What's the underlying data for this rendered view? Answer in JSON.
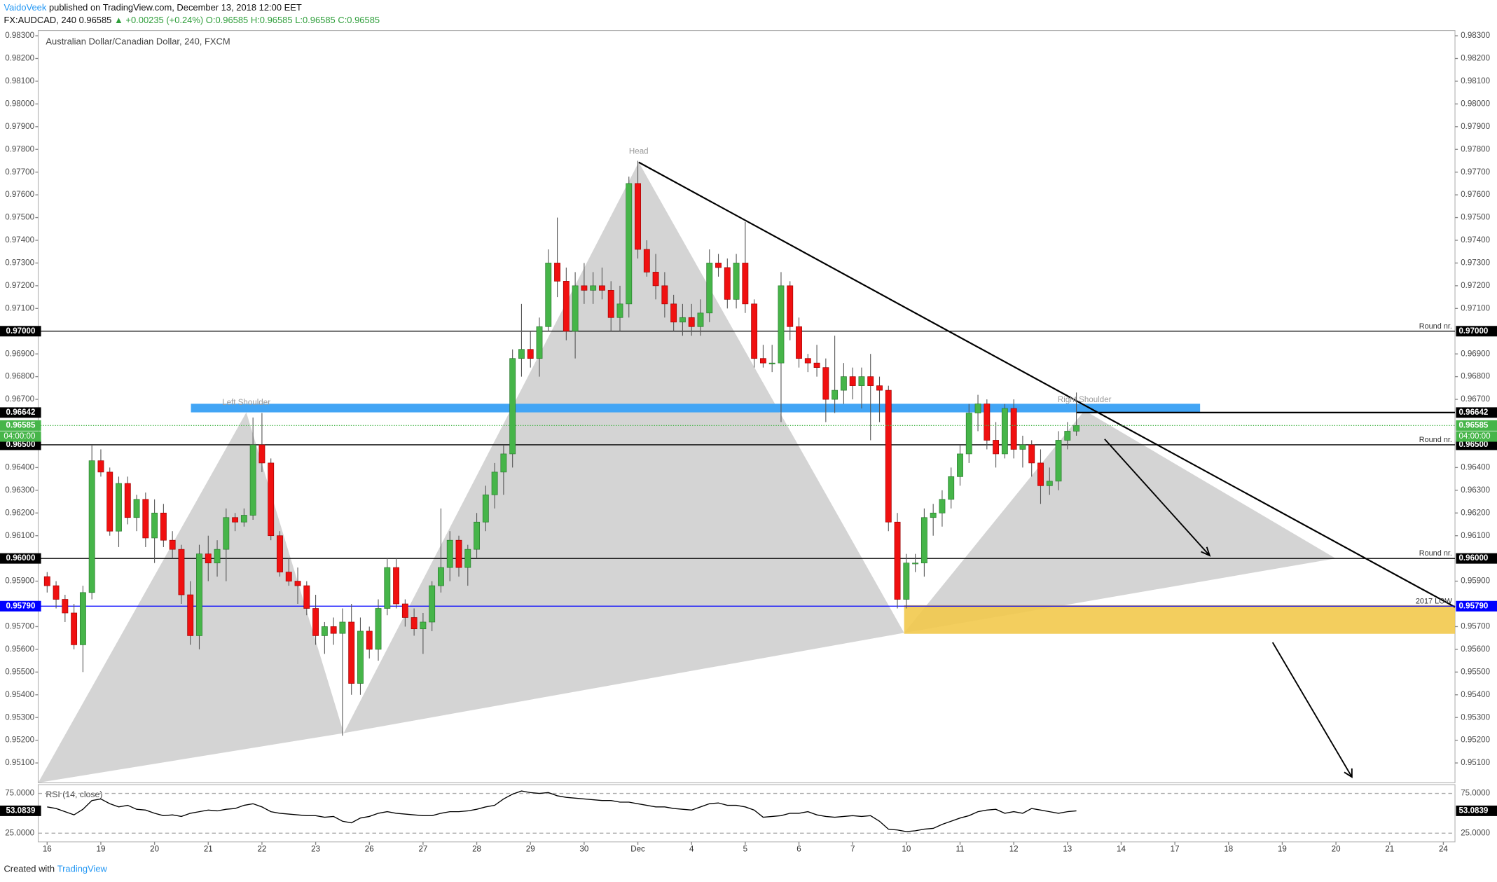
{
  "header": {
    "author": "VaidoVeek",
    "published": "published on TradingView.com, December 13, 2018 12:00 EET",
    "symbol": "FX:AUDCAD, 240",
    "price": "0.96585",
    "change": "▲ +0.00235 (+0.24%)",
    "ohlc": [
      "O:0.96585",
      "H:0.96585",
      "L:0.96585",
      "C:0.96585"
    ]
  },
  "footer": {
    "created": "Created with",
    "brand": "TradingView"
  },
  "annotations": [
    "Left Shoulder",
    "Head",
    "Right Shoulder"
  ],
  "chart_data": {
    "type": "candlestick",
    "title": "Australian Dollar/Canadian Dollar, 240, FXCM",
    "up_color": "#46b549",
    "down_color": "#f01010",
    "xlim": [
      -1,
      157.3
    ],
    "ylim": [
      0.95013,
      0.98323
    ],
    "xticks": [
      {
        "value": 0,
        "label": "16"
      },
      {
        "value": 6,
        "label": "19"
      },
      {
        "value": 12,
        "label": "20"
      },
      {
        "value": 18,
        "label": "21"
      },
      {
        "value": 24,
        "label": "22"
      },
      {
        "value": 30,
        "label": "23"
      },
      {
        "value": 36,
        "label": "26"
      },
      {
        "value": 42,
        "label": "27"
      },
      {
        "value": 48,
        "label": "28"
      },
      {
        "value": 54,
        "label": "29"
      },
      {
        "value": 60,
        "label": "30"
      },
      {
        "value": 66,
        "label": "Dec"
      },
      {
        "value": 72,
        "label": "4"
      },
      {
        "value": 78,
        "label": "5"
      },
      {
        "value": 84,
        "label": "6"
      },
      {
        "value": 90,
        "label": "7"
      },
      {
        "value": 96,
        "label": "10"
      },
      {
        "value": 102,
        "label": "11"
      },
      {
        "value": 108,
        "label": "12"
      },
      {
        "value": 114,
        "label": "13"
      },
      {
        "value": 120,
        "label": "14"
      },
      {
        "value": 126,
        "label": "17"
      },
      {
        "value": 132,
        "label": "18"
      },
      {
        "value": 138,
        "label": "19"
      },
      {
        "value": 144,
        "label": "20"
      },
      {
        "value": 150,
        "label": "21"
      },
      {
        "value": 156,
        "label": "24"
      }
    ],
    "yticks": [
      {
        "value": 0.983,
        "label": "0.98300"
      },
      {
        "value": 0.982,
        "label": "0.98200"
      },
      {
        "value": 0.981,
        "label": "0.98100"
      },
      {
        "value": 0.98,
        "label": "0.98000"
      },
      {
        "value": 0.979,
        "label": "0.97900"
      },
      {
        "value": 0.978,
        "label": "0.97800"
      },
      {
        "value": 0.977,
        "label": "0.97700"
      },
      {
        "value": 0.976,
        "label": "0.97600"
      },
      {
        "value": 0.975,
        "label": "0.97500"
      },
      {
        "value": 0.974,
        "label": "0.97400"
      },
      {
        "value": 0.973,
        "label": "0.97300"
      },
      {
        "value": 0.972,
        "label": "0.97200"
      },
      {
        "value": 0.971,
        "label": "0.97100"
      },
      {
        "value": 0.969,
        "label": "0.96900"
      },
      {
        "value": 0.968,
        "label": "0.96800"
      },
      {
        "value": 0.967,
        "label": "0.96700"
      },
      {
        "value": 0.964,
        "label": "0.96400"
      },
      {
        "value": 0.963,
        "label": "0.96300"
      },
      {
        "value": 0.962,
        "label": "0.96200"
      },
      {
        "value": 0.961,
        "label": "0.96100"
      },
      {
        "value": 0.959,
        "label": "0.95900"
      },
      {
        "value": 0.957,
        "label": "0.95700"
      },
      {
        "value": 0.956,
        "label": "0.95600"
      },
      {
        "value": 0.955,
        "label": "0.95500"
      },
      {
        "value": 0.954,
        "label": "0.95400"
      },
      {
        "value": 0.953,
        "label": "0.95300"
      },
      {
        "value": 0.952,
        "label": "0.95200"
      },
      {
        "value": 0.951,
        "label": "0.95100"
      }
    ],
    "levels": [
      {
        "value": 0.97,
        "label": "0.97000",
        "note": "Round nr.",
        "color": "#000000"
      },
      {
        "value": 0.965,
        "label": "0.96500",
        "note": "Round nr.",
        "color": "#000000"
      },
      {
        "value": 0.96,
        "label": "0.96000",
        "note": "Round nr.",
        "color": "#000000"
      },
      {
        "value": 0.9579,
        "label": "0.95790",
        "note": "2017 LOW",
        "color": "#0000ff"
      },
      {
        "value": 0.96642,
        "label": "0.96642",
        "color": "#000000"
      }
    ],
    "last": {
      "value": 0.96585,
      "label": "0.96585",
      "countdown": "04:00:00",
      "color": "#46b549"
    },
    "candles": [
      [
        0.9592,
        0.9594,
        0.9585,
        0.9588
      ],
      [
        0.9588,
        0.959,
        0.9578,
        0.9582
      ],
      [
        0.9582,
        0.9584,
        0.9572,
        0.9576
      ],
      [
        0.9576,
        0.958,
        0.956,
        0.9562
      ],
      [
        0.9562,
        0.9588,
        0.955,
        0.9585
      ],
      [
        0.9585,
        0.965,
        0.9582,
        0.9643
      ],
      [
        0.9643,
        0.9648,
        0.9636,
        0.9638
      ],
      [
        0.9638,
        0.964,
        0.961,
        0.9612
      ],
      [
        0.9612,
        0.9636,
        0.9605,
        0.9633
      ],
      [
        0.9633,
        0.9636,
        0.9615,
        0.9618
      ],
      [
        0.9618,
        0.9628,
        0.9612,
        0.9626
      ],
      [
        0.9626,
        0.9629,
        0.9605,
        0.9609
      ],
      [
        0.9609,
        0.9626,
        0.9598,
        0.962
      ],
      [
        0.962,
        0.9624,
        0.9605,
        0.9608
      ],
      [
        0.9608,
        0.9612,
        0.96,
        0.9604
      ],
      [
        0.9604,
        0.9606,
        0.958,
        0.9584
      ],
      [
        0.9584,
        0.959,
        0.9562,
        0.9566
      ],
      [
        0.9566,
        0.9606,
        0.956,
        0.9602
      ],
      [
        0.9602,
        0.961,
        0.959,
        0.9598
      ],
      [
        0.9598,
        0.9608,
        0.9592,
        0.9604
      ],
      [
        0.9604,
        0.9622,
        0.959,
        0.9618
      ],
      [
        0.9618,
        0.962,
        0.9612,
        0.9616
      ],
      [
        0.9616,
        0.9622,
        0.9614,
        0.9619
      ],
      [
        0.9619,
        0.9662,
        0.9617,
        0.965
      ],
      [
        0.965,
        0.9664,
        0.9638,
        0.9642
      ],
      [
        0.9642,
        0.9644,
        0.9608,
        0.961
      ],
      [
        0.961,
        0.9612,
        0.9592,
        0.9594
      ],
      [
        0.9594,
        0.96,
        0.9588,
        0.959
      ],
      [
        0.959,
        0.9596,
        0.958,
        0.9588
      ],
      [
        0.9588,
        0.959,
        0.9575,
        0.9578
      ],
      [
        0.9578,
        0.9584,
        0.9562,
        0.9566
      ],
      [
        0.9566,
        0.9572,
        0.9558,
        0.957
      ],
      [
        0.957,
        0.9574,
        0.9562,
        0.9567
      ],
      [
        0.9567,
        0.9578,
        0.9522,
        0.9572
      ],
      [
        0.9572,
        0.958,
        0.954,
        0.9545
      ],
      [
        0.9545,
        0.9574,
        0.954,
        0.9568
      ],
      [
        0.9568,
        0.957,
        0.9556,
        0.956
      ],
      [
        0.956,
        0.9582,
        0.9555,
        0.9578
      ],
      [
        0.9578,
        0.96,
        0.9575,
        0.9596
      ],
      [
        0.9596,
        0.96,
        0.9578,
        0.958
      ],
      [
        0.958,
        0.9582,
        0.957,
        0.9574
      ],
      [
        0.9574,
        0.9578,
        0.9566,
        0.9569
      ],
      [
        0.9569,
        0.9576,
        0.9558,
        0.9572
      ],
      [
        0.9572,
        0.959,
        0.9568,
        0.9588
      ],
      [
        0.9588,
        0.9622,
        0.9585,
        0.9596
      ],
      [
        0.9596,
        0.9612,
        0.959,
        0.9608
      ],
      [
        0.9608,
        0.961,
        0.9592,
        0.9596
      ],
      [
        0.9596,
        0.9606,
        0.9588,
        0.9604
      ],
      [
        0.9604,
        0.962,
        0.96,
        0.9616
      ],
      [
        0.9616,
        0.9632,
        0.9612,
        0.9628
      ],
      [
        0.9628,
        0.9642,
        0.9622,
        0.9638
      ],
      [
        0.9638,
        0.965,
        0.9628,
        0.9646
      ],
      [
        0.9646,
        0.9692,
        0.964,
        0.9688
      ],
      [
        0.9688,
        0.9712,
        0.968,
        0.9692
      ],
      [
        0.9692,
        0.97,
        0.9684,
        0.9688
      ],
      [
        0.9688,
        0.9706,
        0.968,
        0.9702
      ],
      [
        0.9702,
        0.9736,
        0.97,
        0.973
      ],
      [
        0.973,
        0.975,
        0.9715,
        0.9722
      ],
      [
        0.9722,
        0.9728,
        0.9696,
        0.97
      ],
      [
        0.97,
        0.9726,
        0.9688,
        0.972
      ],
      [
        0.972,
        0.973,
        0.9712,
        0.9718
      ],
      [
        0.9718,
        0.9726,
        0.9712,
        0.972
      ],
      [
        0.972,
        0.9728,
        0.9714,
        0.9718
      ],
      [
        0.9718,
        0.9722,
        0.97,
        0.9706
      ],
      [
        0.9706,
        0.972,
        0.97,
        0.9712
      ],
      [
        0.9712,
        0.9768,
        0.9706,
        0.9765
      ],
      [
        0.9765,
        0.9775,
        0.9732,
        0.9736
      ],
      [
        0.9736,
        0.974,
        0.9724,
        0.9726
      ],
      [
        0.9726,
        0.9734,
        0.9714,
        0.972
      ],
      [
        0.972,
        0.9726,
        0.9706,
        0.9712
      ],
      [
        0.9712,
        0.9716,
        0.97,
        0.9704
      ],
      [
        0.9704,
        0.9712,
        0.9698,
        0.9706
      ],
      [
        0.9706,
        0.9712,
        0.9698,
        0.9702
      ],
      [
        0.9702,
        0.9714,
        0.9698,
        0.9708
      ],
      [
        0.9708,
        0.9736,
        0.9704,
        0.973
      ],
      [
        0.973,
        0.9734,
        0.9724,
        0.9728
      ],
      [
        0.9728,
        0.9732,
        0.971,
        0.9714
      ],
      [
        0.9714,
        0.9734,
        0.971,
        0.973
      ],
      [
        0.973,
        0.9748,
        0.9708,
        0.9712
      ],
      [
        0.9712,
        0.9714,
        0.9684,
        0.9688
      ],
      [
        0.9688,
        0.9694,
        0.9684,
        0.9686
      ],
      [
        0.9686,
        0.9694,
        0.9682,
        0.9686
      ],
      [
        0.9686,
        0.9726,
        0.966,
        0.972
      ],
      [
        0.972,
        0.9722,
        0.9696,
        0.9702
      ],
      [
        0.9702,
        0.9706,
        0.9684,
        0.9688
      ],
      [
        0.9688,
        0.969,
        0.9682,
        0.9686
      ],
      [
        0.9686,
        0.9694,
        0.968,
        0.9684
      ],
      [
        0.9684,
        0.9688,
        0.966,
        0.967
      ],
      [
        0.967,
        0.9698,
        0.9664,
        0.9674
      ],
      [
        0.9674,
        0.9686,
        0.9668,
        0.968
      ],
      [
        0.968,
        0.9684,
        0.967,
        0.9676
      ],
      [
        0.9676,
        0.9684,
        0.9666,
        0.968
      ],
      [
        0.968,
        0.969,
        0.9652,
        0.9676
      ],
      [
        0.9676,
        0.968,
        0.966,
        0.9674
      ],
      [
        0.9674,
        0.9676,
        0.9612,
        0.9616
      ],
      [
        0.9616,
        0.962,
        0.9578,
        0.9582
      ],
      [
        0.9582,
        0.9602,
        0.9578,
        0.9598
      ],
      [
        0.9598,
        0.9602,
        0.9594,
        0.9598
      ],
      [
        0.9598,
        0.9622,
        0.9592,
        0.9618
      ],
      [
        0.9618,
        0.9624,
        0.961,
        0.962
      ],
      [
        0.962,
        0.963,
        0.9614,
        0.9626
      ],
      [
        0.9626,
        0.964,
        0.9622,
        0.9636
      ],
      [
        0.9636,
        0.965,
        0.9632,
        0.9646
      ],
      [
        0.9646,
        0.9668,
        0.9642,
        0.9664
      ],
      [
        0.9664,
        0.9672,
        0.9656,
        0.9668
      ],
      [
        0.9668,
        0.967,
        0.9648,
        0.9652
      ],
      [
        0.9652,
        0.966,
        0.964,
        0.9646
      ],
      [
        0.9646,
        0.9668,
        0.9644,
        0.9666
      ],
      [
        0.9666,
        0.967,
        0.9644,
        0.9648
      ],
      [
        0.9648,
        0.9654,
        0.964,
        0.965
      ],
      [
        0.965,
        0.9652,
        0.9636,
        0.9642
      ],
      [
        0.9642,
        0.9648,
        0.9624,
        0.9632
      ],
      [
        0.9632,
        0.964,
        0.9628,
        0.9634
      ],
      [
        0.9634,
        0.9656,
        0.963,
        0.9652
      ],
      [
        0.9652,
        0.966,
        0.9648,
        0.9656
      ],
      [
        0.9656,
        0.9673,
        0.9654,
        0.96585
      ]
    ],
    "rsi": {
      "name": "RSI (14, close)",
      "color": "#000000",
      "ylim": [
        14,
        86
      ],
      "yticks": [
        {
          "value": 75,
          "label": "75.0000"
        },
        {
          "value": 25,
          "label": "25.0000"
        }
      ],
      "last_label": "53.0839",
      "values": [
        58,
        56,
        52,
        48,
        55,
        66,
        68,
        62,
        58,
        60,
        55,
        54,
        50,
        47,
        48,
        46,
        50,
        52,
        54,
        53,
        55,
        56,
        60,
        62,
        58,
        52,
        50,
        49,
        48,
        47,
        47,
        45,
        46,
        40,
        38,
        44,
        46,
        50,
        52,
        50,
        49,
        48,
        47,
        47,
        50,
        52,
        52,
        53,
        55,
        58,
        60,
        68,
        74,
        78,
        76,
        75,
        76,
        72,
        70,
        69,
        68,
        67,
        66,
        66,
        64,
        64,
        62,
        60,
        58,
        58,
        56,
        55,
        54,
        58,
        62,
        63,
        60,
        60,
        58,
        54,
        45,
        46,
        47,
        50,
        50,
        52,
        48,
        46,
        45,
        46,
        47,
        46,
        47,
        40,
        30,
        29,
        27,
        28,
        30,
        31,
        36,
        40,
        44,
        47,
        52,
        54,
        55,
        50,
        52,
        50,
        56,
        54,
        52,
        50,
        52,
        53.0839
      ]
    }
  }
}
